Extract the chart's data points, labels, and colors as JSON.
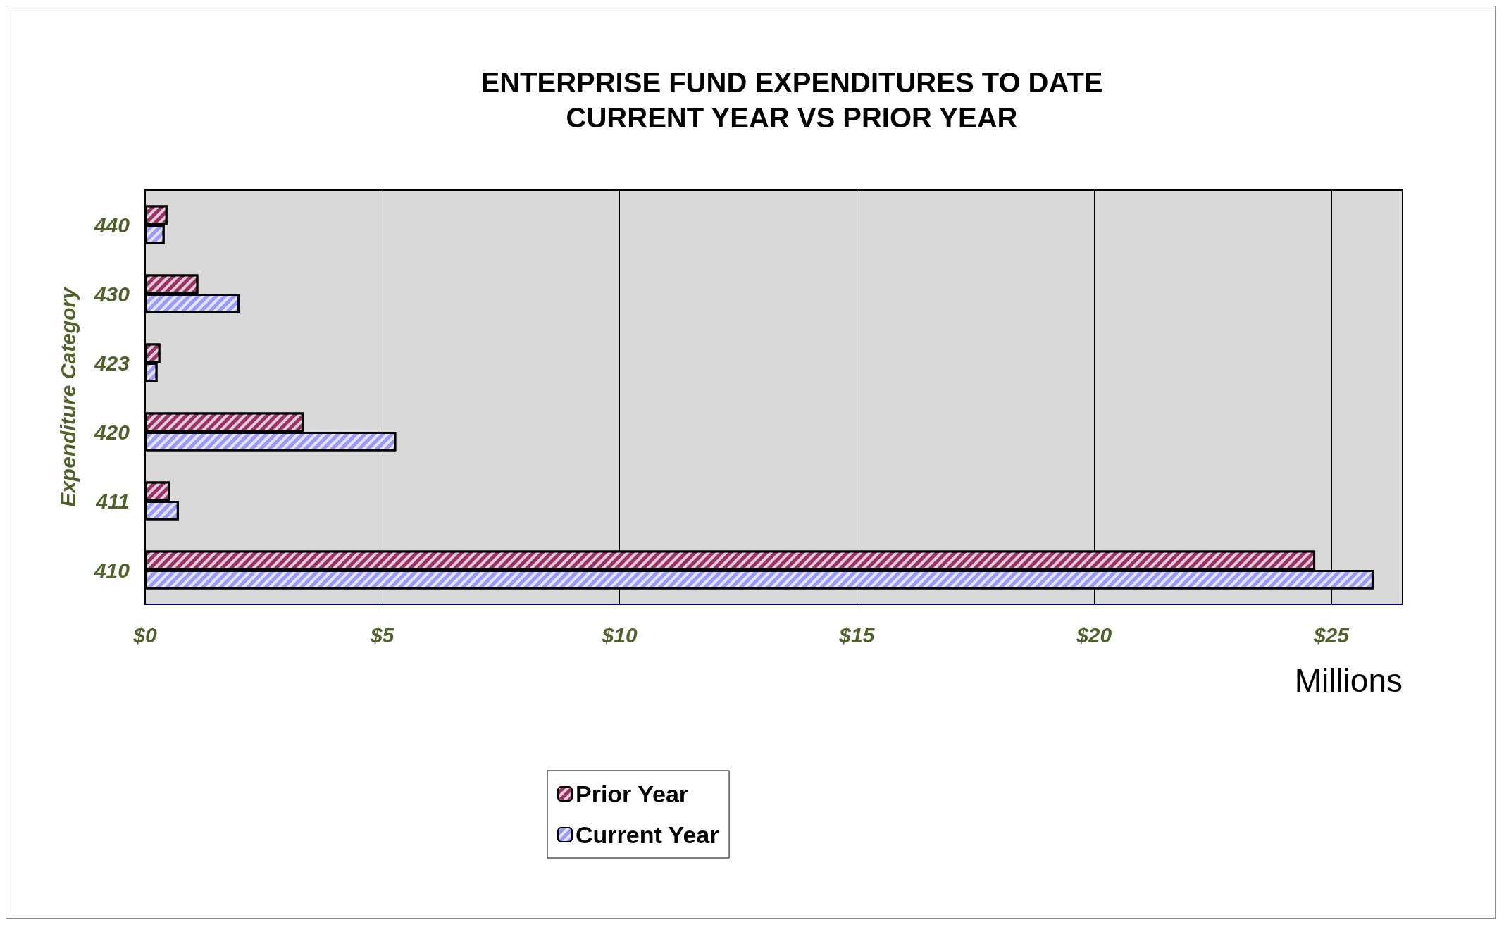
{
  "chart_data": {
    "type": "bar",
    "orientation": "horizontal",
    "title": "ENTERPRISE FUND EXPENDITURES TO DATE\nCURRENT YEAR VS PRIOR YEAR",
    "xlabel": "Millions",
    "ylabel": "Expenditure Category",
    "categories": [
      "440",
      "430",
      "423",
      "420",
      "411",
      "410"
    ],
    "series": [
      {
        "name": "Prior Year",
        "color": "#993366",
        "values": [
          0.47,
          1.12,
          0.32,
          3.34,
          0.52,
          24.66
        ]
      },
      {
        "name": "Current Year",
        "color": "#9999ff",
        "values": [
          0.41,
          1.99,
          0.26,
          5.29,
          0.71,
          25.89
        ]
      }
    ],
    "xlim": [
      0,
      26.5
    ],
    "xticks": [
      {
        "value": 0,
        "label": "$0"
      },
      {
        "value": 5,
        "label": "$5"
      },
      {
        "value": 10,
        "label": "$10"
      },
      {
        "value": 15,
        "label": "$15"
      },
      {
        "value": 20,
        "label": "$20"
      },
      {
        "value": 25,
        "label": "$25"
      }
    ],
    "grid": "x",
    "legend": "bottom"
  }
}
